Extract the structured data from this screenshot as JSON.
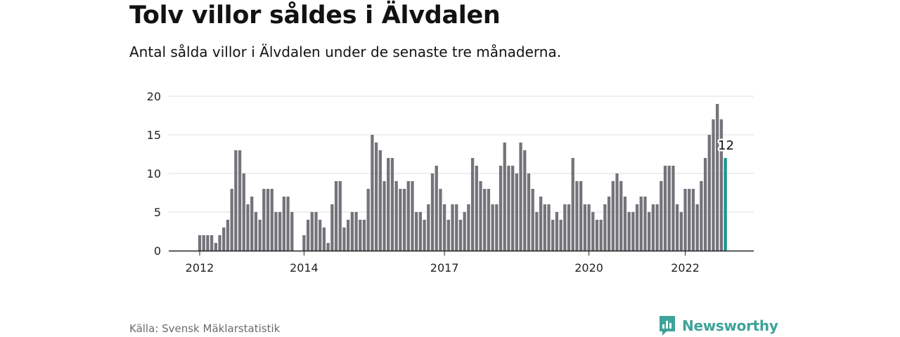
{
  "title": "Tolv villor såldes i Älvdalen",
  "subtitle": "Antal sålda villor i Älvdalen under de senaste tre månaderna.",
  "source": "Källa: Svensk Mäklarstatistik",
  "brand": "Newsworthy",
  "colors": {
    "bar": "#75737a",
    "highlight": "#17958f",
    "grid": "#dcdcdc",
    "axis": "#222222",
    "brand": "#3ea39a"
  },
  "chart_data": {
    "type": "bar",
    "title": "Tolv villor såldes i Älvdalen",
    "subtitle": "Antal sålda villor i Älvdalen under de senaste tre månaderna.",
    "xlabel": "",
    "ylabel": "",
    "ylim": [
      0,
      20
    ],
    "yticks": [
      0,
      5,
      10,
      15,
      20
    ],
    "grid": true,
    "legend": "none",
    "x_ticks": [
      {
        "label": "2012",
        "index": 0
      },
      {
        "label": "2014",
        "index": 26
      },
      {
        "label": "2017",
        "index": 61
      },
      {
        "label": "2020",
        "index": 97
      },
      {
        "label": "2022",
        "index": 121
      }
    ],
    "values": [
      2,
      2,
      2,
      2,
      1,
      2,
      3,
      4,
      8,
      13,
      13,
      10,
      6,
      7,
      5,
      4,
      8,
      8,
      8,
      5,
      5,
      7,
      7,
      5,
      0,
      0,
      2,
      4,
      5,
      5,
      4,
      3,
      1,
      6,
      9,
      9,
      3,
      4,
      5,
      5,
      4,
      4,
      8,
      15,
      14,
      13,
      9,
      12,
      12,
      9,
      8,
      8,
      9,
      9,
      5,
      5,
      4,
      6,
      10,
      11,
      8,
      6,
      4,
      6,
      6,
      4,
      5,
      6,
      12,
      11,
      9,
      8,
      8,
      6,
      6,
      11,
      14,
      11,
      11,
      10,
      14,
      13,
      10,
      8,
      5,
      7,
      6,
      6,
      4,
      5,
      4,
      6,
      6,
      12,
      9,
      9,
      6,
      6,
      5,
      4,
      4,
      6,
      7,
      9,
      10,
      9,
      7,
      5,
      5,
      6,
      7,
      7,
      5,
      6,
      6,
      9,
      11,
      11,
      11,
      6,
      5,
      8,
      8,
      8,
      6,
      9,
      12,
      15,
      17,
      19,
      17,
      12
    ],
    "highlight_index": 131,
    "highlight_label": "12"
  }
}
